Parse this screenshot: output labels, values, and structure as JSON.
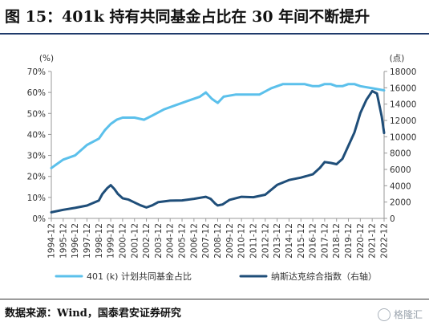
{
  "header": {
    "title": "图 15：401k 持有共同基金占比在 30 年间不断提升"
  },
  "footer": {
    "source": "数据来源：Wind，国泰君安证券研究",
    "watermark": "格隆汇"
  },
  "colors": {
    "series_left": "#5bc0eb",
    "series_right": "#1f4e79",
    "axis": "#999999",
    "title_rule": "#1f3a6b"
  },
  "chart_data": {
    "type": "line",
    "x": [
      "1994-12",
      "1995-12",
      "1996-12",
      "1997-12",
      "1998-12",
      "1999-12",
      "2000-12",
      "2001-12",
      "2002-12",
      "2003-12",
      "2004-12",
      "2005-12",
      "2006-12",
      "2007-12",
      "2008-12",
      "2009-12",
      "2010-12",
      "2011-12",
      "2012-12",
      "2013-12",
      "2014-12",
      "2015-12",
      "2016-12",
      "2017-12",
      "2018-12",
      "2019-12",
      "2020-12",
      "2021-12",
      "2022-12"
    ],
    "left_axis": {
      "unit_label": "(%)",
      "ticks": [
        "0%",
        "10%",
        "20%",
        "30%",
        "40%",
        "50%",
        "60%",
        "70%"
      ],
      "ylim": [
        0,
        70
      ]
    },
    "right_axis": {
      "unit_label": "(点)",
      "ticks": [
        "0",
        "2000",
        "4000",
        "6000",
        "8000",
        "10000",
        "12000",
        "14000",
        "16000",
        "18000"
      ],
      "ylim": [
        0,
        18000
      ]
    },
    "series": [
      {
        "name": "401 (k) 计划共同基金占比",
        "axis": "left",
        "points": [
          [
            0.0,
            24
          ],
          [
            0.5,
            26
          ],
          [
            1.0,
            28
          ],
          [
            2.0,
            30
          ],
          [
            3.0,
            35
          ],
          [
            4.0,
            38
          ],
          [
            4.5,
            42
          ],
          [
            5.0,
            45
          ],
          [
            5.5,
            47
          ],
          [
            6.0,
            48
          ],
          [
            7.0,
            48
          ],
          [
            7.8,
            47
          ],
          [
            8.5,
            49
          ],
          [
            9.5,
            52
          ],
          [
            10.5,
            54
          ],
          [
            11.5,
            56
          ],
          [
            12.5,
            58
          ],
          [
            13.0,
            60
          ],
          [
            13.5,
            57
          ],
          [
            14.0,
            55
          ],
          [
            14.5,
            58
          ],
          [
            15.5,
            59
          ],
          [
            16.5,
            59
          ],
          [
            17.5,
            59
          ],
          [
            18.5,
            62
          ],
          [
            19.5,
            64
          ],
          [
            20.5,
            64
          ],
          [
            21.3,
            64
          ],
          [
            22.0,
            63
          ],
          [
            22.5,
            63
          ],
          [
            23.0,
            64
          ],
          [
            23.5,
            64
          ],
          [
            24.0,
            63
          ],
          [
            24.5,
            63
          ],
          [
            25.0,
            64
          ],
          [
            25.5,
            64
          ],
          [
            26.0,
            63
          ],
          [
            27.0,
            62
          ],
          [
            28.0,
            61
          ]
        ]
      },
      {
        "name": "纳斯达克综合指数（右轴）",
        "axis": "right",
        "points": [
          [
            0.0,
            750
          ],
          [
            1.0,
            1050
          ],
          [
            2.0,
            1290
          ],
          [
            3.0,
            1570
          ],
          [
            4.0,
            2190
          ],
          [
            4.3,
            3000
          ],
          [
            4.7,
            3700
          ],
          [
            5.0,
            4070
          ],
          [
            5.3,
            3600
          ],
          [
            5.6,
            3000
          ],
          [
            6.0,
            2470
          ],
          [
            6.5,
            2300
          ],
          [
            7.0,
            1950
          ],
          [
            7.5,
            1600
          ],
          [
            8.0,
            1340
          ],
          [
            8.5,
            1600
          ],
          [
            9.0,
            2000
          ],
          [
            10.0,
            2170
          ],
          [
            11.0,
            2200
          ],
          [
            12.0,
            2400
          ],
          [
            13.0,
            2650
          ],
          [
            13.4,
            2400
          ],
          [
            13.8,
            1800
          ],
          [
            14.0,
            1580
          ],
          [
            14.4,
            1700
          ],
          [
            15.0,
            2270
          ],
          [
            16.0,
            2650
          ],
          [
            17.0,
            2600
          ],
          [
            18.0,
            2900
          ],
          [
            19.0,
            4100
          ],
          [
            20.0,
            4700
          ],
          [
            21.0,
            5000
          ],
          [
            22.0,
            5400
          ],
          [
            22.6,
            6200
          ],
          [
            23.0,
            6900
          ],
          [
            23.5,
            6800
          ],
          [
            24.0,
            6640
          ],
          [
            24.5,
            7300
          ],
          [
            25.0,
            8900
          ],
          [
            25.5,
            10500
          ],
          [
            26.0,
            12900
          ],
          [
            26.5,
            14500
          ],
          [
            27.0,
            15600
          ],
          [
            27.4,
            15300
          ],
          [
            27.8,
            12500
          ],
          [
            28.0,
            10470
          ]
        ]
      }
    ],
    "legend_position": "bottom",
    "grid": false
  }
}
